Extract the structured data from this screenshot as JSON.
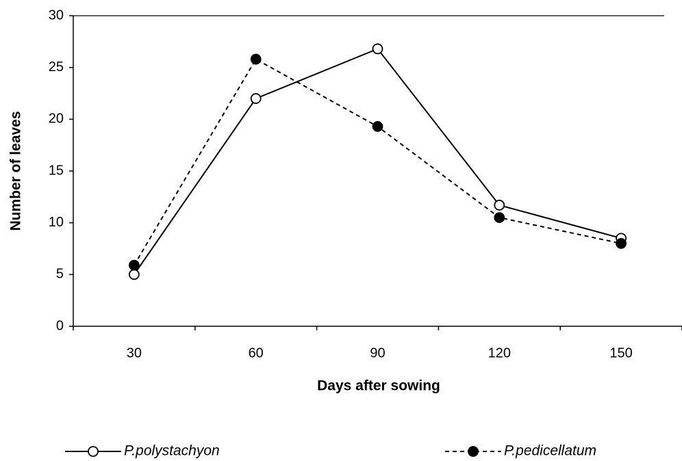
{
  "chart_data": {
    "type": "line",
    "x_label": "Days after sowing",
    "y_label": "Number of leaves",
    "categories": [
      "30",
      "60",
      "90",
      "120",
      "150"
    ],
    "series": [
      {
        "name": "P.polystachyon",
        "color": "#000000",
        "marker": "open",
        "dash": "solid",
        "values": [
          5,
          22,
          26.8,
          11.7,
          8.5
        ]
      },
      {
        "name": "P.pedicellatum",
        "color": "#000000",
        "marker": "filled",
        "dash": "dashed",
        "values": [
          5.9,
          25.8,
          19.3,
          10.5,
          8.0
        ]
      }
    ],
    "ylim": [
      0,
      30
    ],
    "yticks": [
      0,
      5,
      10,
      15,
      20,
      25,
      30
    ],
    "legend": "bottom"
  }
}
